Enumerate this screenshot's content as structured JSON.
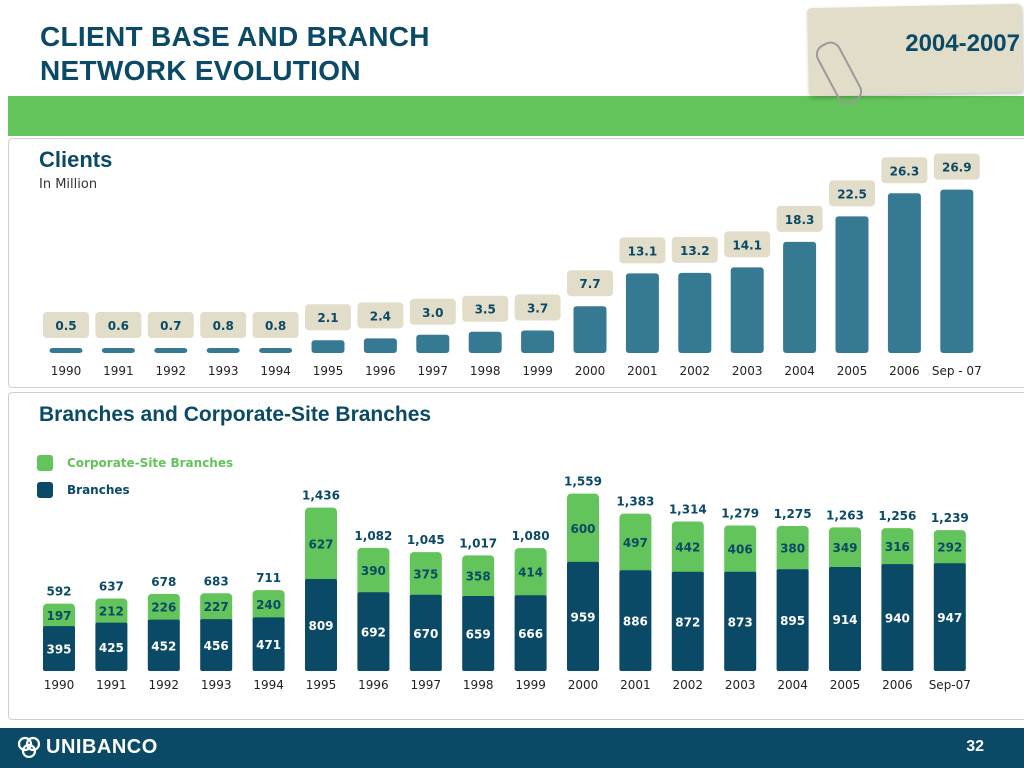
{
  "header": {
    "title_line1": "CLIENT BASE AND BRANCH",
    "title_line2": "NETWORK EVOLUTION",
    "period": "2004-2007"
  },
  "colors": {
    "navy": "#0a4a66",
    "teal": "#357a92",
    "green": "#62c45a",
    "beige": "#e2ddc8"
  },
  "footer": {
    "logo_text": "UNIBANCO",
    "logo_icon": "unibanco-logo-icon",
    "page_number": "32"
  },
  "chart_data": [
    {
      "type": "bar",
      "title": "Clients",
      "subtitle": "In Million",
      "categories": [
        "1990",
        "1991",
        "1992",
        "1993",
        "1994",
        "1995",
        "1996",
        "1997",
        "1998",
        "1999",
        "2000",
        "2001",
        "2002",
        "2003",
        "2004",
        "2005",
        "2006",
        "Sep - 07"
      ],
      "values": [
        0.5,
        0.6,
        0.7,
        0.8,
        0.8,
        2.1,
        2.4,
        3.0,
        3.5,
        3.7,
        7.7,
        13.1,
        13.2,
        14.1,
        18.3,
        22.5,
        26.3,
        26.9
      ],
      "value_labels": [
        "0.5",
        "0.6",
        "0.7",
        "0.8",
        "0.8",
        "2.1",
        "2.4",
        "3.0",
        "3.5",
        "3.7",
        "7.7",
        "13.1",
        "13.2",
        "14.1",
        "18.3",
        "22.5",
        "26.3",
        "26.9"
      ],
      "ylim": [
        0,
        27
      ]
    },
    {
      "type": "bar",
      "title": "Branches and Corporate-Site Branches",
      "stacked": true,
      "legend": "top-left",
      "categories": [
        "1990",
        "1991",
        "1992",
        "1993",
        "1994",
        "1995",
        "1996",
        "1997",
        "1998",
        "1999",
        "2000",
        "2001",
        "2002",
        "2003",
        "2004",
        "2005",
        "2006",
        "Sep-07"
      ],
      "series": [
        {
          "name": "Branches",
          "values": [
            395,
            425,
            452,
            456,
            471,
            809,
            692,
            670,
            659,
            666,
            959,
            886,
            872,
            873,
            895,
            914,
            940,
            947
          ]
        },
        {
          "name": "Corporate-Site Branches",
          "values": [
            197,
            212,
            226,
            227,
            240,
            627,
            390,
            375,
            358,
            414,
            600,
            497,
            442,
            406,
            380,
            349,
            316,
            292
          ]
        }
      ],
      "totals": [
        592,
        637,
        678,
        683,
        711,
        1436,
        1082,
        1045,
        1017,
        1080,
        1559,
        1383,
        1314,
        1279,
        1275,
        1263,
        1256,
        1239
      ],
      "total_labels": [
        "592",
        "637",
        "678",
        "683",
        "711",
        "1,436",
        "1,082",
        "1,045",
        "1,017",
        "1,080",
        "1,559",
        "1,383",
        "1,314",
        "1,279",
        "1,275",
        "1,263",
        "1,256",
        "1,239"
      ],
      "ylim": [
        0,
        1600
      ]
    }
  ]
}
